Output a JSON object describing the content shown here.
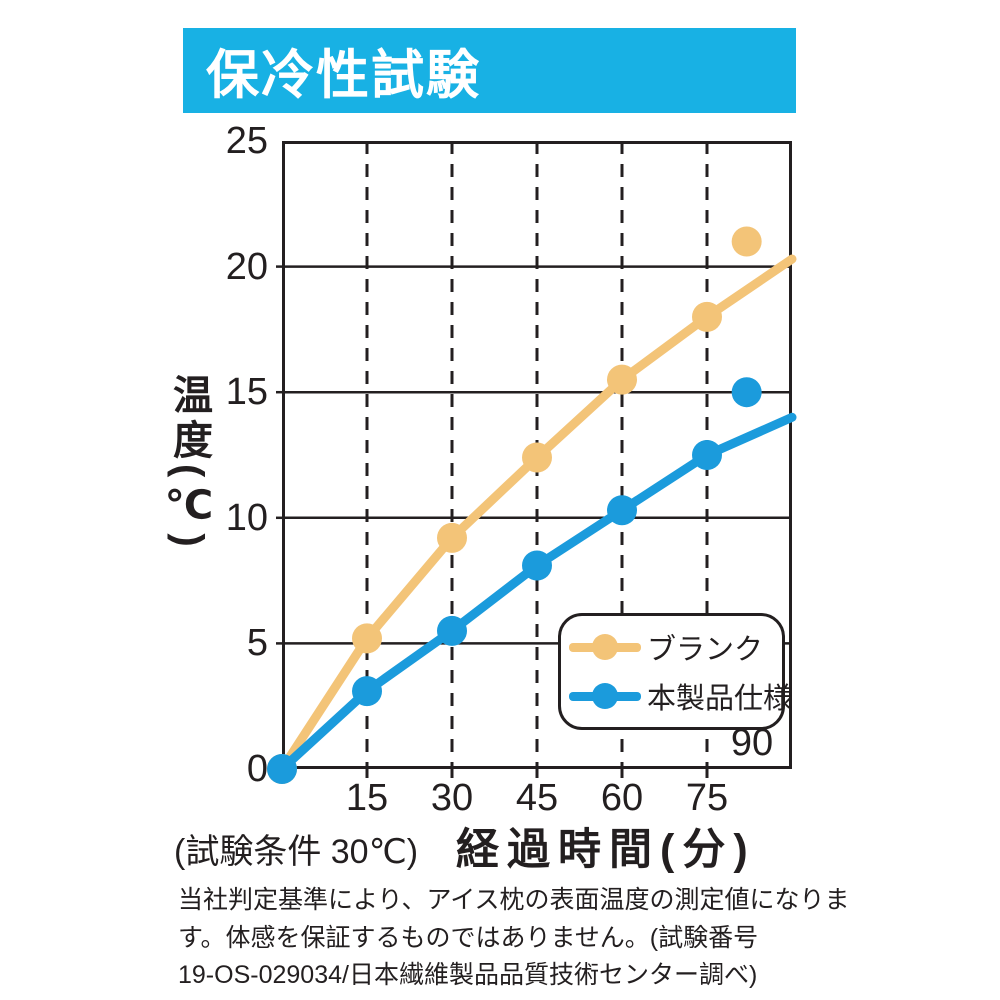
{
  "banner": {
    "title": "保冷性試験",
    "bg_color": "#18B1E4",
    "text_color": "#FFFFFF"
  },
  "axis": {
    "y_title": "温度(℃)",
    "x_title": "経過時間(分)",
    "condition_note": "(試験条件 30℃)",
    "inside_tick_label": "90"
  },
  "colors": {
    "ink": "#231F20",
    "blank_series": "#F3C478",
    "product_series": "#1B9BDC"
  },
  "chart_data": {
    "type": "line",
    "title": "保冷性試験",
    "xlabel": "経過時間(分)",
    "ylabel": "温度(℃)",
    "xlim": [
      0,
      90
    ],
    "ylim": [
      0,
      25
    ],
    "x_ticks": [
      15,
      30,
      45,
      60,
      75
    ],
    "y_ticks": [
      0,
      5,
      10,
      15,
      20,
      25
    ],
    "grid": {
      "horizontal": "solid",
      "vertical": "dashed"
    },
    "x": [
      0,
      15,
      30,
      45,
      60,
      75,
      90
    ],
    "series": [
      {
        "name": "ブランク",
        "color": "#F3C478",
        "values": [
          0,
          5.2,
          9.2,
          12.4,
          15.5,
          18,
          20.3
        ],
        "marker_count": 6,
        "floating_point": {
          "x": 82,
          "y": 21
        }
      },
      {
        "name": "本製品仕様",
        "color": "#1B9BDC",
        "values": [
          0,
          3.1,
          5.5,
          8.1,
          10.3,
          12.5,
          14
        ],
        "marker_count": 6,
        "floating_point": {
          "x": 82,
          "y": 15
        }
      }
    ],
    "legend_position": "inside-bottom-right"
  },
  "footnote": {
    "line1": "当社判定基準により、アイス枕の表面温度の測定値になりま",
    "line2": "す。体感を保証するものではありません。(試験番号",
    "line3": "19-OS-029034/日本繊維製品品質技術センター調べ)"
  }
}
